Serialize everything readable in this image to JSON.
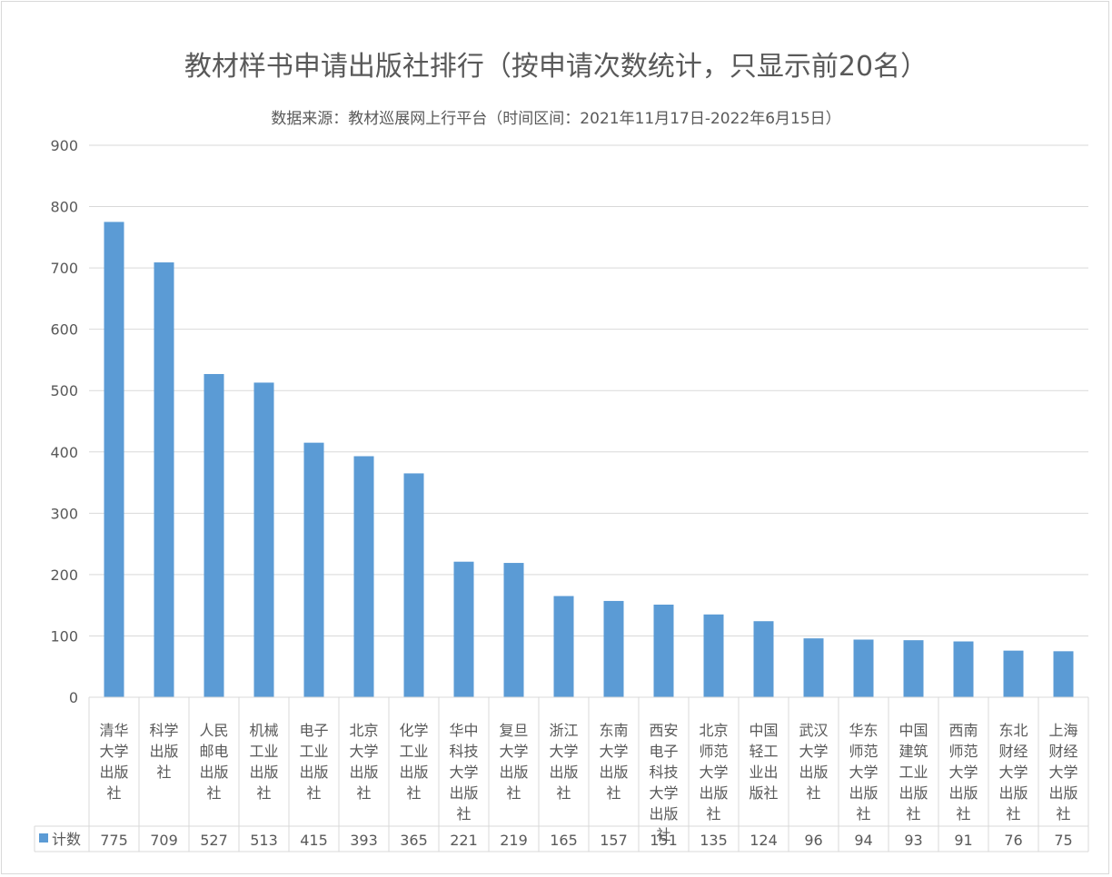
{
  "chart_data": {
    "type": "bar",
    "title": "教材样书申请出版社排行（按申请次数统计，只显示前20名）",
    "subtitle": "数据来源：教材巡展网上行平台（时间区间：2021年11月17日-2022年6月15日）",
    "categories": [
      "清华大学出版社",
      "科学出版社",
      "人民邮电出版社",
      "机械工业出版社",
      "电子工业出版社",
      "北京大学出版社",
      "化学工业出版社",
      "华中科技大学出版社",
      "复旦大学出版社",
      "浙江大学出版社",
      "东南大学出版社",
      "西安电子科技大学出版社",
      "北京师范大学出版社",
      "中国轻工业出版社",
      "武汉大学出版社",
      "华东师范大学出版社",
      "中国建筑工业出版社",
      "西南师范大学出版社",
      "东北财经大学出版社",
      "上海财经大学出版社"
    ],
    "category_lines": [
      [
        "清华",
        "大学",
        "出版",
        "社"
      ],
      [
        "科学",
        "出版",
        "社"
      ],
      [
        "人民",
        "邮电",
        "出版",
        "社"
      ],
      [
        "机械",
        "工业",
        "出版",
        "社"
      ],
      [
        "电子",
        "工业",
        "出版",
        "社"
      ],
      [
        "北京",
        "大学",
        "出版",
        "社"
      ],
      [
        "化学",
        "工业",
        "出版",
        "社"
      ],
      [
        "华中",
        "科技",
        "大学",
        "出版",
        "社"
      ],
      [
        "复旦",
        "大学",
        "出版",
        "社"
      ],
      [
        "浙江",
        "大学",
        "出版",
        "社"
      ],
      [
        "东南",
        "大学",
        "出版",
        "社"
      ],
      [
        "西安",
        "电子",
        "科技",
        "大学",
        "出版",
        "社"
      ],
      [
        "北京",
        "师范",
        "大学",
        "出版",
        "社"
      ],
      [
        "中国",
        "轻工",
        "业出",
        "版社"
      ],
      [
        "武汉",
        "大学",
        "出版",
        "社"
      ],
      [
        "华东",
        "师范",
        "大学",
        "出版",
        "社"
      ],
      [
        "中国",
        "建筑",
        "工业",
        "出版",
        "社"
      ],
      [
        "西南",
        "师范",
        "大学",
        "出版",
        "社"
      ],
      [
        "东北",
        "财经",
        "大学",
        "出版",
        "社"
      ],
      [
        "上海",
        "财经",
        "大学",
        "出版",
        "社"
      ]
    ],
    "series": [
      {
        "name": "计数",
        "values": [
          775,
          709,
          527,
          513,
          415,
          393,
          365,
          221,
          219,
          165,
          157,
          151,
          135,
          124,
          96,
          94,
          93,
          91,
          76,
          75
        ]
      }
    ],
    "ylim": [
      0,
      900
    ],
    "yticks": [
      "0",
      "100",
      "200",
      "300",
      "400",
      "500",
      "600",
      "700",
      "800",
      "900"
    ],
    "grid": true,
    "legend": "data-table",
    "colors": {
      "bar": "#5b9bd5",
      "grid": "#d9d9d9",
      "text": "#595959"
    }
  }
}
